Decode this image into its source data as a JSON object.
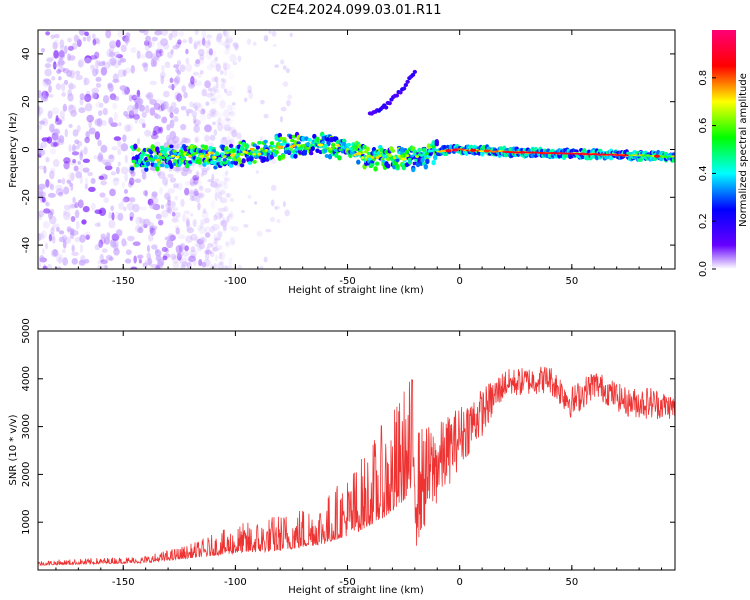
{
  "chart_data": [
    {
      "type": "heatmap",
      "title": "C2E4.2024.099.03.01.R11",
      "xlabel": "Height of straight line (km)",
      "ylabel": "Frequency (Hz)",
      "xlim": [
        -188,
        96
      ],
      "ylim": [
        -50,
        50
      ],
      "xticks": [
        -150,
        -100,
        -50,
        0,
        50
      ],
      "yticks": [
        -40,
        -20,
        0,
        20,
        40
      ],
      "colorbar": {
        "label": "Normalized spectral amplitude",
        "range": [
          0,
          1
        ],
        "ticks": [
          "0.0",
          "0.2",
          "0.4",
          "0.6",
          "0.8"
        ]
      },
      "features": {
        "noise_region_x": [
          -188,
          -120
        ],
        "main_band": [
          {
            "x": -145,
            "f": -3
          },
          {
            "x": -120,
            "f": -3
          },
          {
            "x": -100,
            "f": -2
          },
          {
            "x": -80,
            "f": 1
          },
          {
            "x": -60,
            "f": 2
          },
          {
            "x": -40,
            "f": -3
          },
          {
            "x": -25,
            "f": -4
          },
          {
            "x": -10,
            "f": -1
          },
          {
            "x": 0,
            "f": 0
          },
          {
            "x": 20,
            "f": -1
          },
          {
            "x": 60,
            "f": -2
          },
          {
            "x": 96,
            "f": -3
          }
        ],
        "side_branch": [
          {
            "x": -40,
            "f": 15
          },
          {
            "x": -33,
            "f": 18
          },
          {
            "x": -25,
            "f": 26
          },
          {
            "x": -20,
            "f": 33
          }
        ]
      }
    },
    {
      "type": "line",
      "xlabel": "Height of straight line (km)",
      "ylabel": "SNR (10 * v/v)",
      "xlim": [
        -188,
        96
      ],
      "ylim": [
        0,
        5000
      ],
      "xticks": [
        -150,
        -100,
        -50,
        0,
        50
      ],
      "yticks": [
        1000,
        2000,
        3000,
        4000,
        5000
      ],
      "color": "#ee3333",
      "envelope": [
        {
          "x": -188,
          "base": 100,
          "amp": 100
        },
        {
          "x": -140,
          "base": 150,
          "amp": 150
        },
        {
          "x": -120,
          "base": 250,
          "amp": 300
        },
        {
          "x": -100,
          "base": 350,
          "amp": 600
        },
        {
          "x": -80,
          "base": 400,
          "amp": 800
        },
        {
          "x": -60,
          "base": 550,
          "amp": 1000
        },
        {
          "x": -45,
          "base": 800,
          "amp": 1500
        },
        {
          "x": -30,
          "base": 1200,
          "amp": 2200
        },
        {
          "x": -20,
          "base": 1700,
          "amp": 2600
        },
        {
          "x": -10,
          "base": 2200,
          "amp": 1700
        },
        {
          "x": 0,
          "base": 2800,
          "amp": 1300
        },
        {
          "x": 10,
          "base": 3300,
          "amp": 1000
        },
        {
          "x": 20,
          "base": 3900,
          "amp": 600
        },
        {
          "x": 40,
          "base": 4000,
          "amp": 600
        },
        {
          "x": 50,
          "base": 3500,
          "amp": 700
        },
        {
          "x": 60,
          "base": 3900,
          "amp": 600
        },
        {
          "x": 75,
          "base": 3500,
          "amp": 600
        },
        {
          "x": 85,
          "base": 3500,
          "amp": 700
        },
        {
          "x": 96,
          "base": 3400,
          "amp": 500
        }
      ]
    }
  ]
}
